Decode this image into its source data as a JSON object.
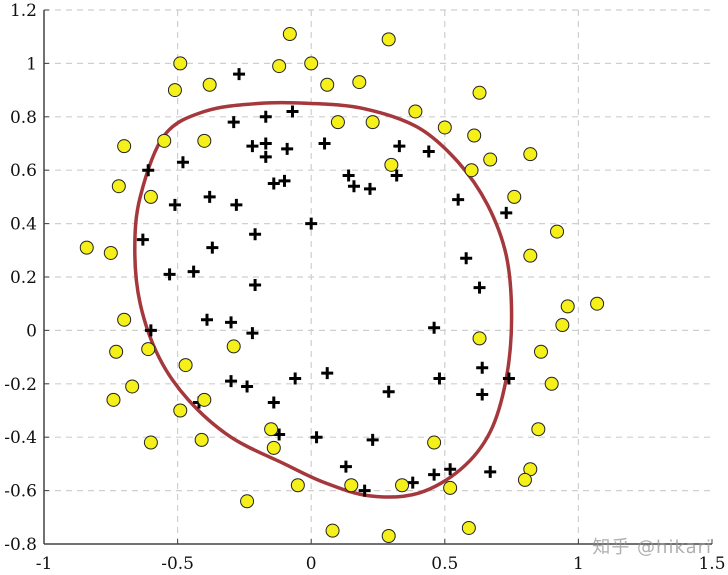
{
  "chart_data": {
    "type": "scatter",
    "title": "",
    "xlabel": "",
    "ylabel": "",
    "xlim": [
      -1,
      1.5
    ],
    "ylim": [
      -0.8,
      1.2
    ],
    "xticks": [
      "-1",
      "-0.5",
      "0",
      "0.5",
      "1",
      "1.5"
    ],
    "yticks": [
      "-0.8",
      "-0.6",
      "-0.4",
      "-0.2",
      "0",
      "0.2",
      "0.4",
      "0.6",
      "0.8",
      "1",
      "1.2"
    ],
    "grid": true,
    "series": [
      {
        "marker": "plus",
        "color": "#000000",
        "points": [
          [
            -0.27,
            0.96
          ],
          [
            -0.17,
            0.8
          ],
          [
            -0.07,
            0.82
          ],
          [
            -0.29,
            0.78
          ],
          [
            -0.22,
            0.69
          ],
          [
            -0.17,
            0.7
          ],
          [
            -0.09,
            0.68
          ],
          [
            0.05,
            0.7
          ],
          [
            -0.17,
            0.65
          ],
          [
            -0.48,
            0.63
          ],
          [
            -0.61,
            0.6
          ],
          [
            -0.14,
            0.55
          ],
          [
            -0.1,
            0.56
          ],
          [
            0.14,
            0.58
          ],
          [
            0.16,
            0.54
          ],
          [
            0.22,
            0.53
          ],
          [
            0.32,
            0.58
          ],
          [
            0.33,
            0.69
          ],
          [
            0.44,
            0.67
          ],
          [
            -0.51,
            0.47
          ],
          [
            -0.38,
            0.5
          ],
          [
            -0.28,
            0.47
          ],
          [
            0.55,
            0.49
          ],
          [
            0.73,
            0.44
          ],
          [
            0.0,
            0.4
          ],
          [
            -0.63,
            0.34
          ],
          [
            -0.21,
            0.36
          ],
          [
            -0.37,
            0.31
          ],
          [
            -0.53,
            0.21
          ],
          [
            -0.44,
            0.22
          ],
          [
            -0.21,
            0.17
          ],
          [
            0.58,
            0.27
          ],
          [
            0.63,
            0.16
          ],
          [
            -0.6,
            0.0
          ],
          [
            -0.39,
            0.04
          ],
          [
            -0.3,
            0.03
          ],
          [
            -0.22,
            -0.01
          ],
          [
            0.46,
            0.01
          ],
          [
            -0.3,
            -0.19
          ],
          [
            -0.24,
            -0.21
          ],
          [
            -0.06,
            -0.18
          ],
          [
            0.06,
            -0.16
          ],
          [
            0.48,
            -0.18
          ],
          [
            0.64,
            -0.14
          ],
          [
            0.74,
            -0.18
          ],
          [
            0.29,
            -0.23
          ],
          [
            -0.42,
            -0.27
          ],
          [
            -0.14,
            -0.27
          ],
          [
            -0.12,
            -0.39
          ],
          [
            0.02,
            -0.4
          ],
          [
            0.23,
            -0.41
          ],
          [
            0.64,
            -0.24
          ],
          [
            0.13,
            -0.51
          ],
          [
            0.2,
            -0.6
          ],
          [
            0.38,
            -0.57
          ],
          [
            0.46,
            -0.54
          ],
          [
            0.52,
            -0.52
          ],
          [
            0.67,
            -0.53
          ]
        ]
      },
      {
        "marker": "circle",
        "color": "#f5ef1a",
        "points": [
          [
            -0.08,
            1.11
          ],
          [
            0.29,
            1.09
          ],
          [
            -0.49,
            1.0
          ],
          [
            -0.12,
            0.99
          ],
          [
            0.0,
            1.0
          ],
          [
            -0.51,
            0.9
          ],
          [
            -0.38,
            0.92
          ],
          [
            0.06,
            0.92
          ],
          [
            0.18,
            0.93
          ],
          [
            0.63,
            0.89
          ],
          [
            0.39,
            0.82
          ],
          [
            0.1,
            0.78
          ],
          [
            0.23,
            0.78
          ],
          [
            0.5,
            0.76
          ],
          [
            0.61,
            0.73
          ],
          [
            -0.55,
            0.71
          ],
          [
            -0.4,
            0.71
          ],
          [
            -0.7,
            0.69
          ],
          [
            0.67,
            0.64
          ],
          [
            0.82,
            0.66
          ],
          [
            0.3,
            0.62
          ],
          [
            0.6,
            0.6
          ],
          [
            -0.72,
            0.54
          ],
          [
            -0.6,
            0.5
          ],
          [
            0.76,
            0.5
          ],
          [
            0.92,
            0.37
          ],
          [
            -0.84,
            0.31
          ],
          [
            -0.75,
            0.29
          ],
          [
            0.82,
            0.28
          ],
          [
            0.96,
            0.09
          ],
          [
            1.07,
            0.1
          ],
          [
            0.94,
            0.02
          ],
          [
            -0.7,
            0.04
          ],
          [
            0.63,
            -0.03
          ],
          [
            -0.61,
            -0.07
          ],
          [
            -0.73,
            -0.08
          ],
          [
            -0.29,
            -0.06
          ],
          [
            0.86,
            -0.08
          ],
          [
            -0.47,
            -0.13
          ],
          [
            -0.67,
            -0.21
          ],
          [
            0.9,
            -0.2
          ],
          [
            -0.74,
            -0.26
          ],
          [
            -0.4,
            -0.26
          ],
          [
            -0.49,
            -0.3
          ],
          [
            -0.15,
            -0.37
          ],
          [
            0.85,
            -0.37
          ],
          [
            -0.6,
            -0.42
          ],
          [
            -0.41,
            -0.41
          ],
          [
            0.46,
            -0.42
          ],
          [
            -0.14,
            -0.44
          ],
          [
            0.82,
            -0.52
          ],
          [
            0.8,
            -0.56
          ],
          [
            -0.05,
            -0.58
          ],
          [
            0.15,
            -0.58
          ],
          [
            0.34,
            -0.58
          ],
          [
            0.52,
            -0.59
          ],
          [
            -0.24,
            -0.64
          ],
          [
            0.08,
            -0.75
          ],
          [
            0.29,
            -0.77
          ],
          [
            0.59,
            -0.74
          ]
        ]
      }
    ],
    "boundary": {
      "color": "#a4383c",
      "points": [
        [
          -0.55,
          0.73
        ],
        [
          -0.4,
          0.82
        ],
        [
          -0.2,
          0.85
        ],
        [
          0.0,
          0.85
        ],
        [
          0.2,
          0.83
        ],
        [
          0.4,
          0.76
        ],
        [
          0.55,
          0.63
        ],
        [
          0.66,
          0.47
        ],
        [
          0.73,
          0.28
        ],
        [
          0.75,
          0.05
        ],
        [
          0.73,
          -0.18
        ],
        [
          0.67,
          -0.38
        ],
        [
          0.56,
          -0.52
        ],
        [
          0.4,
          -0.61
        ],
        [
          0.22,
          -0.62
        ],
        [
          0.05,
          -0.57
        ],
        [
          -0.1,
          -0.5
        ],
        [
          -0.3,
          -0.4
        ],
        [
          -0.46,
          -0.26
        ],
        [
          -0.57,
          -0.1
        ],
        [
          -0.64,
          0.1
        ],
        [
          -0.66,
          0.3
        ],
        [
          -0.64,
          0.5
        ]
      ]
    }
  },
  "watermark": "知乎 @hikari"
}
